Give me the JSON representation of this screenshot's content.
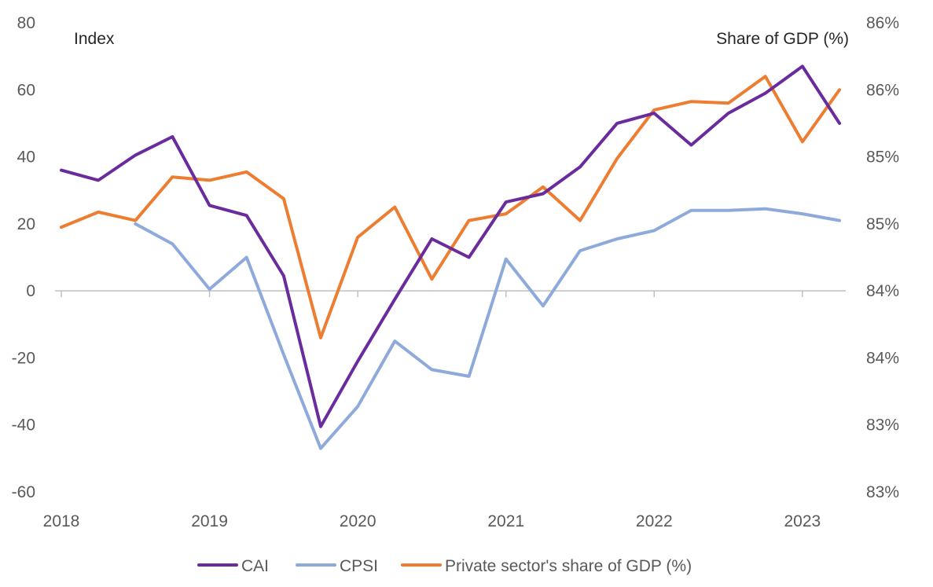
{
  "chart_data": {
    "type": "line",
    "left_axis": {
      "label": "Index",
      "ylim": [
        -60,
        80
      ],
      "ticks": [
        "80",
        "60",
        "40",
        "20",
        "0",
        "-20",
        "-40",
        "-60"
      ]
    },
    "right_axis": {
      "label": "Share of GDP (%)",
      "ticks": [
        "86%",
        "86%",
        "85%",
        "85%",
        "84%",
        "84%",
        "83%",
        "83%"
      ]
    },
    "x_tick_labels": [
      "2018",
      "2019",
      "2020",
      "2021",
      "2022",
      "2023"
    ],
    "x_ticks_at": [
      2018,
      2019,
      2020,
      2021,
      2022,
      2023
    ],
    "xlim": [
      2018,
      2023.25
    ],
    "grid": false,
    "legend_position": "bottom",
    "series": [
      {
        "name": "CAI",
        "color": "#6a2c9c",
        "axis": "left",
        "x": [
          2018.0,
          2018.25,
          2018.5,
          2018.75,
          2019.0,
          2019.25,
          2019.5,
          2019.75,
          2020.0,
          2020.25,
          2020.5,
          2020.75,
          2021.0,
          2021.25,
          2021.5,
          2021.75,
          2022.0,
          2022.25,
          2022.5,
          2022.75,
          2023.0,
          2023.25
        ],
        "values": [
          36,
          33,
          40.5,
          46,
          25.5,
          22.5,
          4.5,
          -40.5,
          -21,
          -2.5,
          15.5,
          10,
          26.5,
          29,
          37,
          50,
          53,
          43.5,
          53,
          59,
          67,
          50
        ]
      },
      {
        "name": "CPSI",
        "color": "#8eaadb",
        "axis": "left",
        "x": [
          2018.5,
          2018.75,
          2019.0,
          2019.25,
          2019.5,
          2019.75,
          2020.0,
          2020.25,
          2020.5,
          2020.75,
          2021.0,
          2021.25,
          2021.5,
          2021.75,
          2022.0,
          2022.25,
          2022.5,
          2022.75,
          2023.0,
          2023.25
        ],
        "values": [
          20,
          14,
          0.5,
          10,
          -19,
          -47,
          -34.5,
          -15,
          -23.5,
          -25.5,
          9.5,
          -4.5,
          12,
          15.5,
          18,
          24,
          24,
          24.5,
          23,
          21
        ]
      },
      {
        "name": "Private sector's share of GDP (%)",
        "color": "#ed7d31",
        "axis": "left",
        "x": [
          2018.0,
          2018.25,
          2018.5,
          2018.75,
          2019.0,
          2019.25,
          2019.5,
          2019.75,
          2020.0,
          2020.25,
          2020.5,
          2020.75,
          2021.0,
          2021.25,
          2021.5,
          2021.75,
          2022.0,
          2022.25,
          2022.5,
          2022.75,
          2023.0,
          2023.25
        ],
        "values": [
          19,
          23.5,
          21,
          34,
          33,
          35.5,
          27.5,
          -14,
          16,
          25,
          3.5,
          21,
          23,
          31,
          21,
          39.5,
          54,
          56.5,
          56,
          64,
          44.5,
          60
        ]
      }
    ]
  }
}
